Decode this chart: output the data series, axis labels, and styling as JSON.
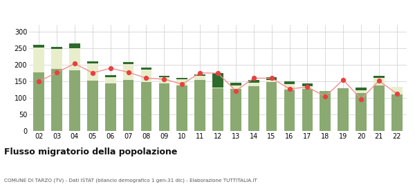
{
  "years": [
    "02",
    "03",
    "04",
    "05",
    "06",
    "07",
    "08",
    "09",
    "10",
    "11",
    "12",
    "13",
    "14",
    "15",
    "16",
    "17",
    "18",
    "19",
    "20",
    "21",
    "22"
  ],
  "iscritti_comuni": [
    178,
    188,
    183,
    152,
    145,
    155,
    148,
    145,
    138,
    155,
    130,
    128,
    136,
    148,
    125,
    128,
    122,
    130,
    115,
    138,
    112
  ],
  "iscritti_estero": [
    75,
    60,
    68,
    52,
    18,
    47,
    38,
    18,
    18,
    12,
    2,
    10,
    10,
    7,
    18,
    8,
    0,
    0,
    8,
    22,
    22
  ],
  "iscritti_altri": [
    8,
    7,
    13,
    7,
    6,
    6,
    7,
    5,
    5,
    5,
    44,
    8,
    8,
    8,
    8,
    8,
    0,
    0,
    8,
    8,
    0
  ],
  "cancellati": [
    150,
    177,
    204,
    176,
    190,
    178,
    160,
    157,
    142,
    176,
    175,
    122,
    160,
    160,
    128,
    133,
    105,
    155,
    97,
    152,
    113
  ],
  "color_comuni": "#8aaa72",
  "color_estero": "#e8eecc",
  "color_altri": "#2d6b2d",
  "color_cancellati": "#e84040",
  "color_line": "#f09090",
  "title": "Flusso migratorio della popolazione",
  "subtitle": "COMUNE DI TARZO (TV) - Dati ISTAT (bilancio demografico 1 gen-31 dic) - Elaborazione TUTTITALIA.IT",
  "ylim": [
    0,
    320
  ],
  "yticks": [
    0,
    50,
    100,
    150,
    200,
    250,
    300
  ],
  "grid_color": "#cccccc",
  "bg_color": "#ffffff"
}
